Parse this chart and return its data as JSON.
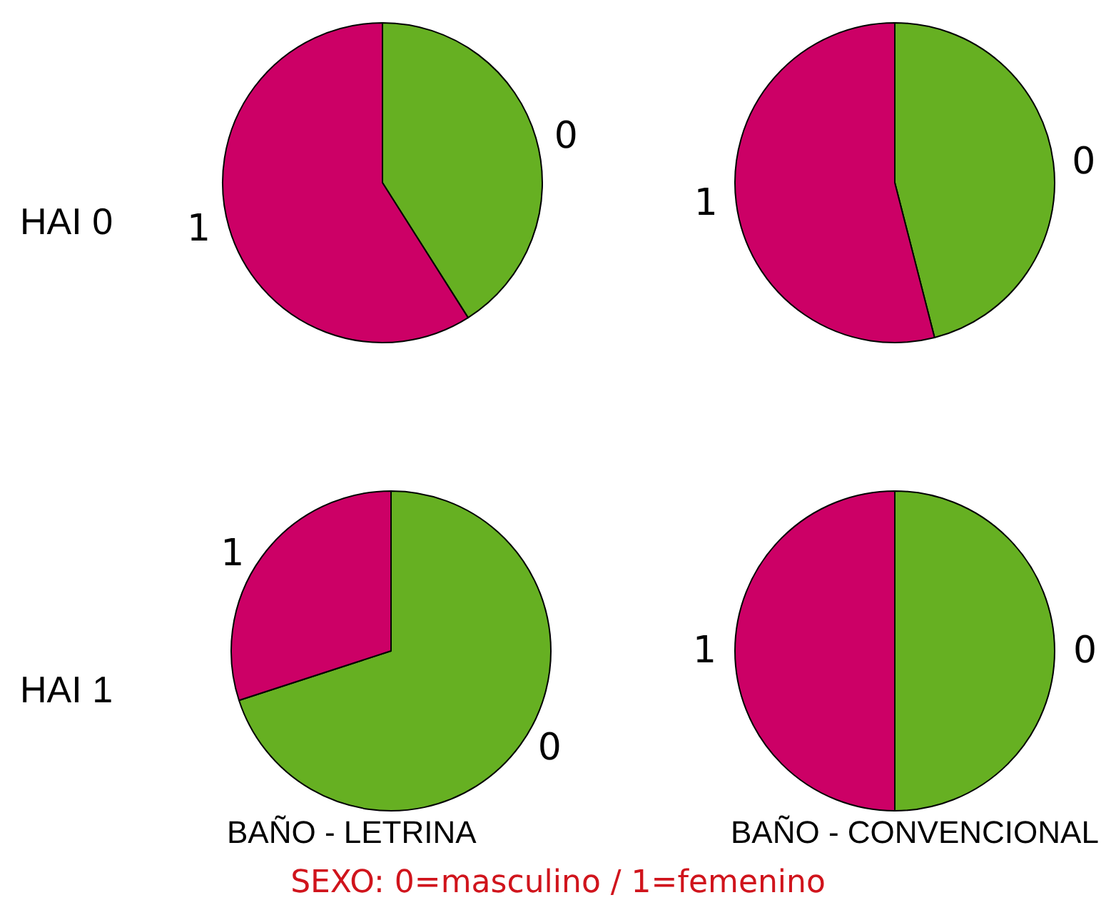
{
  "chart_data": [
    {
      "type": "pie",
      "ylabel": "HAI 0",
      "categories": [
        "0",
        "1"
      ],
      "values": [
        41,
        59
      ],
      "colors": [
        "#66b022",
        "#cc0066"
      ]
    },
    {
      "type": "pie",
      "categories": [
        "0",
        "1"
      ],
      "values": [
        46,
        54
      ],
      "colors": [
        "#66b022",
        "#cc0066"
      ]
    },
    {
      "type": "pie",
      "ylabel": "HAI 1",
      "xlabel": "BAÑO - LETRINA",
      "categories": [
        "0",
        "1"
      ],
      "values": [
        70,
        30
      ],
      "colors": [
        "#66b022",
        "#cc0066"
      ]
    },
    {
      "type": "pie",
      "xlabel": "BAÑO - CONVENCIONAL",
      "categories": [
        "0",
        "1"
      ],
      "values": [
        50,
        50
      ],
      "colors": [
        "#66b022",
        "#cc0066"
      ],
      "annotations": [
        "SEXO: 0=masculino / 1=femenino"
      ]
    }
  ]
}
